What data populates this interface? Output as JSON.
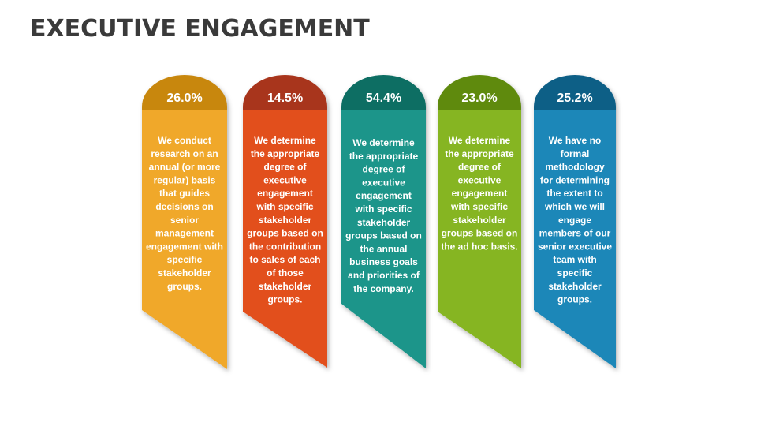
{
  "title": "EXECUTIVE ENGAGEMENT",
  "cards": [
    {
      "percent": "26.0%",
      "lines": [
        "We  conduct",
        "research on an",
        "annual (or more",
        "regular) basis",
        "that guides",
        "decisions on",
        "senior",
        "management",
        "engagement with",
        "specific",
        "stakeholder",
        "groups."
      ]
    },
    {
      "percent": "14.5%",
      "lines": [
        "We determine",
        "the appropriate",
        "degree of",
        "executive",
        "engagement",
        "with specific",
        "stakeholder",
        "groups based on",
        "the contribution",
        "to sales of each",
        "of those",
        "stakeholder",
        "groups."
      ]
    },
    {
      "percent": "54.4%",
      "lines": [
        "We determine",
        "the appropriate",
        "degree of",
        "executive",
        "engagement",
        "with specific",
        "stakeholder",
        "groups based on",
        "the annual",
        "business goals",
        "and priorities of",
        "the company."
      ]
    },
    {
      "percent": "23.0%",
      "lines": [
        "We determine",
        "the appropriate",
        "degree of",
        "executive",
        "engagement",
        "with specific",
        "stakeholder",
        "groups based on",
        "the ad hoc basis."
      ]
    },
    {
      "percent": "25.2%",
      "lines": [
        "We have no",
        "formal",
        "methodology",
        "for determining",
        "the extent to",
        "which we will",
        "engage",
        "members of our",
        "senior executive",
        "team with",
        "specific",
        "stakeholder",
        "groups."
      ]
    }
  ]
}
